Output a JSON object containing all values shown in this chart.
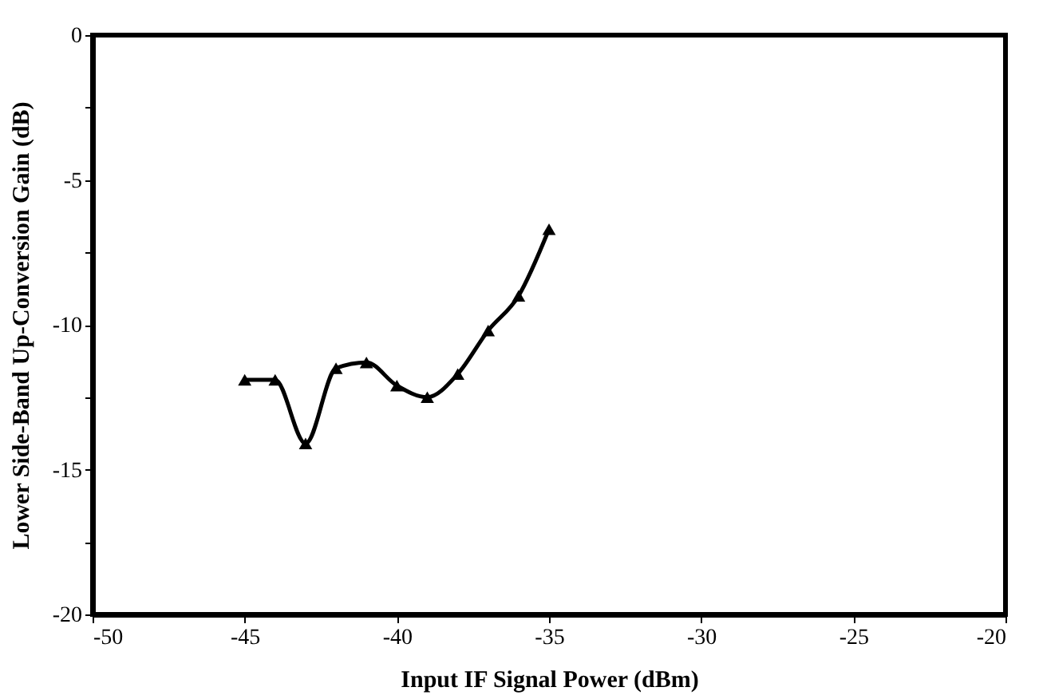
{
  "chart_data": {
    "type": "line",
    "xlabel": "Input IF Signal Power (dBm)",
    "ylabel": "Lower Side-Band Up-Conversion Gain (dB)",
    "x": [
      -45,
      -44,
      -43,
      -42,
      -41,
      -40,
      -39,
      -38,
      -37,
      -36,
      -35
    ],
    "series": [
      {
        "color": "#000000",
        "values": [
          -11.9,
          -11.9,
          -14.1,
          -11.5,
          -11.3,
          -12.1,
          -12.5,
          -11.7,
          -10.2,
          -9.0,
          -6.7
        ]
      }
    ],
    "xlim": [
      -50,
      -20
    ],
    "xticks": [
      -50,
      -45,
      -40,
      -35,
      -30,
      -25,
      -20
    ],
    "ylim": [
      -20,
      0
    ],
    "yticks": [
      -20,
      {
        "value": -17.5,
        "label": null
      },
      -15,
      {
        "value": -12.5,
        "label": null
      },
      -10,
      {
        "value": -7.5,
        "label": null
      },
      -5,
      {
        "value": -2.5,
        "label": null
      },
      0
    ],
    "grid": false,
    "marker": "triangle",
    "line_style": "solid"
  }
}
